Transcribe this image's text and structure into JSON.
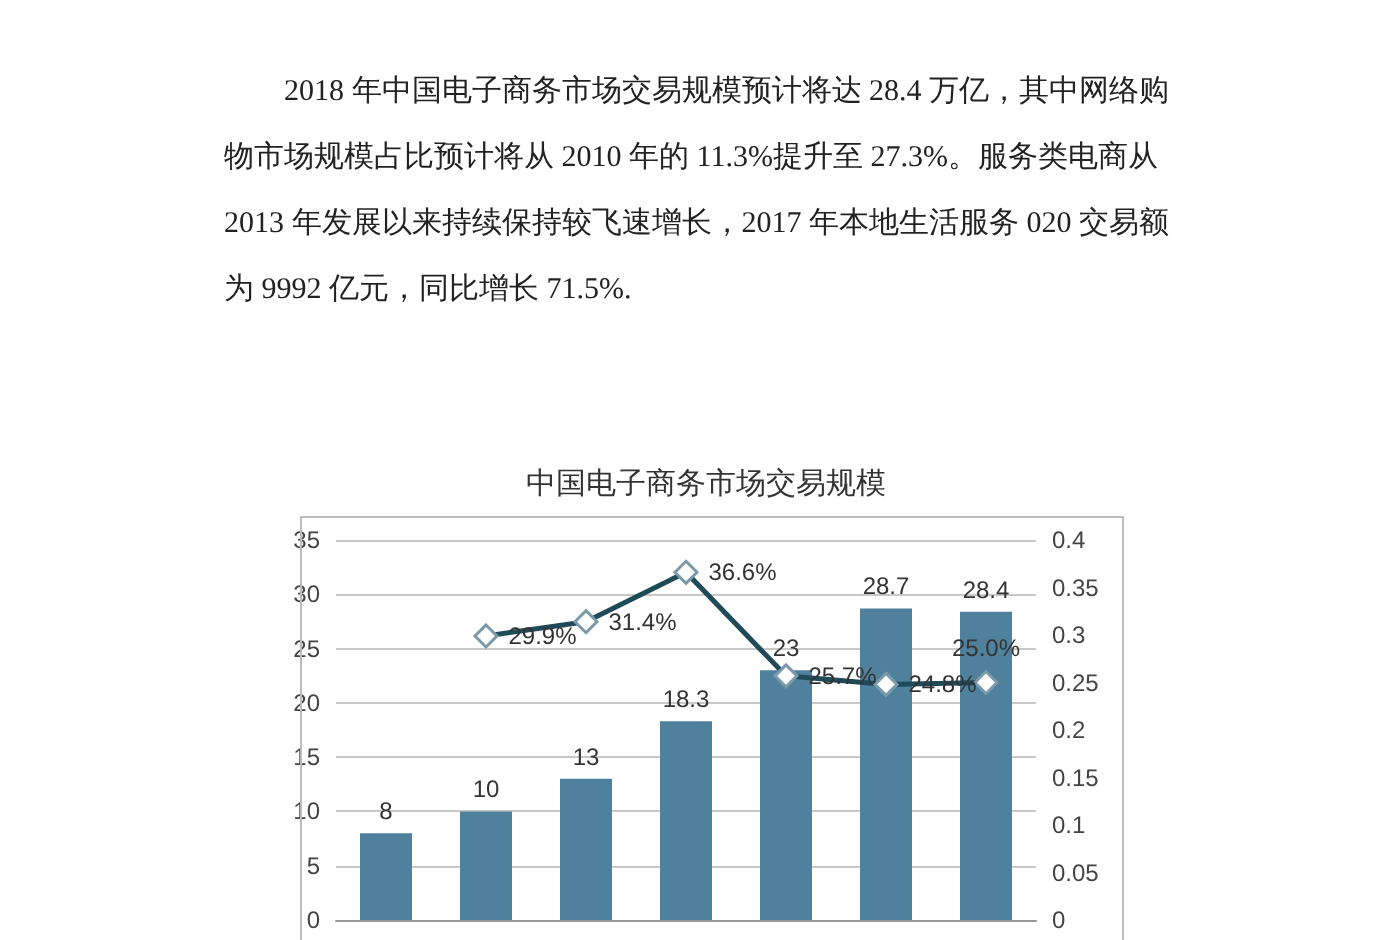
{
  "chart_data": {
    "type": "bar",
    "title": "中国电子商务市场交易规模",
    "annotations": [
      "2018 年中国电子商务市场交易规模预计将达 28.4 万亿，其中网络购物市场规模占比预计将从 2010 年的 11.3%提升至 27.3%。服务类电商从 2013 年发展以来持续保持较飞速增长，2017 年本地生活服务 020 交易额为 9992 亿元，同比增长 71.5%."
    ],
    "categories": [
      null,
      null,
      null,
      null,
      null,
      null,
      null
    ],
    "series": [
      {
        "color": "#4f819c",
        "values": [
          8,
          10,
          13,
          18.3,
          23,
          28.7,
          28.4
        ],
        "value_labels": [
          "8",
          "10",
          "13",
          "18.3",
          "23",
          "28.7",
          "28.4"
        ]
      },
      {
        "type": "line",
        "axis": "y2",
        "color": "#1e4a5a",
        "marker": "diamond",
        "line_style": "solid",
        "values": [
          null,
          0.299,
          0.314,
          0.366,
          0.257,
          0.248,
          0.25
        ],
        "value_labels": [
          null,
          "29.9%",
          "31.4%",
          "36.6%",
          "25.7%",
          "24.8%",
          "25.0%"
        ]
      }
    ],
    "ylim": [
      0,
      35
    ],
    "yticks": [
      0,
      5,
      10,
      15,
      20,
      25,
      30,
      35
    ],
    "y2lim": [
      0,
      0.4
    ],
    "y2ticks": [
      0,
      0.05,
      0.1,
      0.15,
      0.2,
      0.25,
      0.3,
      0.35,
      0.4
    ],
    "grid": "y"
  }
}
